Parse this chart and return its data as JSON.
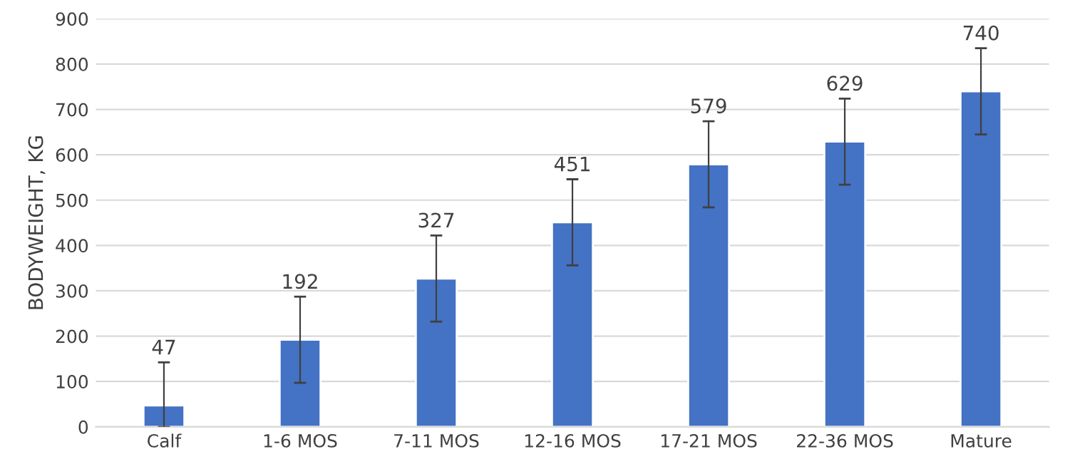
{
  "chart_data": {
    "type": "bar",
    "ylabel": "BODYWEIGHT, KG",
    "categories": [
      "Calf",
      "1-6 MOS",
      "7-11 MOS",
      "12-16 MOS",
      "17-21 MOS",
      "22-36 MOS",
      "Mature"
    ],
    "values": [
      47,
      192,
      327,
      451,
      579,
      629,
      740
    ],
    "errors": [
      [
        0,
        142
      ],
      [
        97,
        287
      ],
      [
        232,
        422
      ],
      [
        356,
        546
      ],
      [
        484,
        674
      ],
      [
        534,
        724
      ],
      [
        645,
        835
      ]
    ],
    "color": "#4472c4",
    "data_labels": true,
    "ylim": [
      0,
      900
    ],
    "yticks": [
      0,
      100,
      200,
      300,
      400,
      500,
      600,
      700,
      800,
      900
    ],
    "grid": "y",
    "legend": false
  }
}
